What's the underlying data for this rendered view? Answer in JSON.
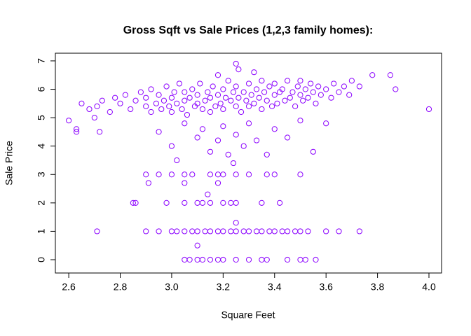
{
  "chart_data": {
    "type": "scatter",
    "title": "Gross Sqft vs Sale Prices (1,2,3 family homes):",
    "x_label": "Square Feet",
    "y_label": "Sale Price",
    "color": "#8b00ff",
    "xlim": [
      2.548,
      4.049
    ],
    "ylim": [
      -0.468,
      7.27
    ],
    "xticks": [
      2.6,
      2.8,
      {
        "value": 3,
        "label": "3.0"
      },
      3.2,
      3.4,
      3.6,
      3.8,
      {
        "value": 4,
        "label": "4.0"
      }
    ],
    "yticks": [
      0,
      1,
      2,
      3,
      4,
      5,
      6,
      7
    ],
    "x": [
      2.78,
      2.8,
      2.82,
      2.84,
      2.86,
      2.88,
      2.9,
      2.9,
      2.92,
      2.92,
      2.94,
      2.95,
      2.96,
      2.97,
      2.98,
      2.99,
      3.0,
      3.0,
      3.01,
      3.02,
      3.03,
      3.04,
      3.05,
      3.05,
      3.06,
      3.07,
      3.08,
      3.09,
      3.1,
      3.1,
      3.11,
      3.12,
      3.13,
      3.14,
      3.15,
      3.15,
      3.16,
      3.17,
      3.18,
      3.19,
      3.2,
      3.2,
      3.21,
      3.22,
      3.23,
      3.24,
      3.25,
      3.25,
      3.26,
      3.27,
      3.28,
      3.29,
      3.3,
      3.3,
      3.31,
      3.32,
      3.33,
      3.34,
      3.35,
      3.35,
      3.36,
      3.37,
      3.38,
      3.39,
      3.4,
      3.4,
      3.41,
      3.42,
      3.43,
      3.44,
      3.45,
      3.46,
      3.47,
      3.48,
      3.49,
      3.5,
      3.5,
      3.51,
      3.52,
      3.53,
      3.54,
      3.55,
      3.56,
      3.57,
      3.58,
      3.6,
      3.62,
      3.63,
      3.65,
      3.67,
      3.69,
      3.7,
      3.18,
      3.25,
      3.26,
      3.32,
      2.95,
      3.0,
      3.05,
      3.1,
      3.12,
      3.15,
      3.18,
      3.2,
      3.22,
      3.25,
      3.28,
      3.3,
      3.33,
      3.37,
      3.4,
      3.45,
      3.5,
      3.55,
      3.6,
      3.02,
      3.24,
      2.6,
      2.63,
      2.63,
      2.65,
      2.68,
      2.7,
      2.71,
      2.72,
      2.73,
      2.76,
      3.73,
      3.78,
      3.85,
      3.87,
      4.0,
      2.9,
      2.95,
      3.0,
      3.05,
      3.08,
      3.15,
      3.18,
      3.2,
      3.25,
      3.3,
      3.37,
      3.4,
      3.5,
      2.91,
      3.05,
      3.18,
      2.85,
      2.86,
      2.98,
      3.05,
      3.1,
      3.12,
      3.15,
      3.2,
      3.23,
      3.25,
      3.35,
      3.42,
      3.14,
      2.71,
      2.9,
      2.95,
      3.0,
      3.02,
      3.05,
      3.08,
      3.1,
      3.13,
      3.15,
      3.18,
      3.2,
      3.23,
      3.25,
      3.28,
      3.3,
      3.33,
      3.35,
      3.38,
      3.4,
      3.43,
      3.45,
      3.48,
      3.5,
      3.53,
      3.6,
      3.65,
      3.73,
      3.05,
      3.07,
      3.1,
      3.12,
      3.15,
      3.18,
      3.2,
      3.25,
      3.3,
      3.35,
      3.37,
      3.45,
      3.5,
      3.52,
      3.56,
      3.1,
      3.25
    ],
    "values": [
      5.7,
      5.5,
      5.8,
      5.3,
      5.6,
      5.9,
      5.4,
      5.7,
      5.2,
      6.0,
      5.5,
      5.8,
      5.3,
      5.6,
      6.1,
      5.4,
      5.7,
      5.2,
      5.9,
      5.5,
      6.2,
      5.3,
      5.6,
      5.9,
      5.1,
      5.7,
      6.0,
      5.4,
      5.8,
      5.5,
      6.2,
      5.3,
      5.6,
      5.9,
      5.2,
      5.7,
      6.1,
      5.4,
      5.8,
      5.5,
      6.0,
      5.3,
      5.7,
      6.3,
      5.6,
      5.9,
      5.4,
      6.1,
      5.7,
      5.2,
      5.9,
      5.6,
      6.2,
      5.4,
      5.8,
      5.5,
      6.0,
      5.7,
      5.3,
      6.3,
      5.9,
      5.6,
      6.1,
      5.4,
      5.8,
      6.2,
      5.5,
      5.9,
      6.0,
      5.6,
      6.3,
      5.7,
      5.9,
      5.4,
      6.1,
      5.8,
      6.3,
      5.6,
      6.0,
      5.7,
      6.2,
      5.9,
      5.5,
      6.1,
      5.8,
      6.0,
      5.7,
      6.2,
      5.9,
      6.1,
      5.8,
      6.3,
      6.5,
      6.9,
      6.7,
      6.6,
      4.5,
      4.0,
      4.8,
      4.3,
      4.6,
      3.8,
      4.2,
      4.7,
      3.7,
      4.4,
      4.0,
      4.8,
      4.2,
      3.7,
      4.6,
      4.3,
      4.9,
      3.8,
      4.8,
      3.5,
      3.4,
      4.9,
      4.6,
      4.5,
      5.5,
      5.3,
      5.0,
      5.4,
      4.5,
      5.6,
      5.2,
      6.1,
      6.5,
      6.5,
      6.0,
      5.3,
      3,
      3,
      3,
      3,
      3,
      3,
      3,
      3,
      3,
      3,
      3,
      3,
      3,
      2.7,
      2.7,
      2.7,
      2,
      2,
      2,
      2,
      2,
      2,
      2,
      2,
      2,
      2,
      2,
      2,
      2.3,
      1,
      1,
      1,
      1,
      1,
      1,
      1,
      1,
      1,
      1,
      1,
      1,
      1,
      1,
      1,
      1,
      1,
      1,
      1,
      1,
      1,
      1,
      1,
      1,
      1,
      1,
      1,
      1,
      0,
      0,
      0,
      0,
      0,
      0,
      0,
      0,
      0,
      0,
      0,
      0,
      0,
      0,
      0,
      0.5,
      1.3
    ]
  }
}
